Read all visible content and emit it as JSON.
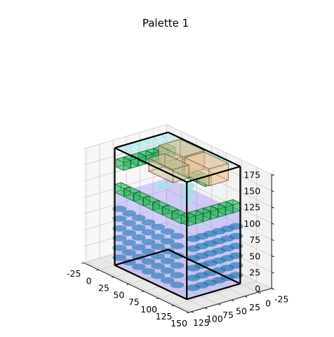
{
  "chart_data": {
    "type": "3d-scatter",
    "title": "Palette 1",
    "xlabel": "",
    "ylabel": "",
    "zlabel": "",
    "xlim": [
      -25,
      150
    ],
    "ylim": [
      -25,
      130
    ],
    "zlim": [
      0,
      175
    ],
    "x_ticks": [
      "-25",
      "0",
      "25",
      "50",
      "75",
      "100",
      "125",
      "150"
    ],
    "y_ticks": [
      "-25",
      "0",
      "25",
      "50",
      "75",
      "100",
      "125"
    ],
    "z_ticks": [
      "0",
      "25",
      "50",
      "75",
      "100",
      "125",
      "150",
      "175"
    ],
    "grid": true,
    "container": {
      "x": [
        0,
        120
      ],
      "y": [
        0,
        100
      ],
      "z": [
        0,
        180
      ]
    },
    "colors": {
      "container_edge": "#000000",
      "blue_box": "#7b6cff",
      "cylinder": "#1f77b4",
      "cylinder_light": "#9fe3e8",
      "green_box": "#33c26b",
      "tan_box": "#d8c29a",
      "peach_box": "#f2c89e",
      "pane": "#f2f2f2",
      "grid": "#cccccc"
    }
  }
}
